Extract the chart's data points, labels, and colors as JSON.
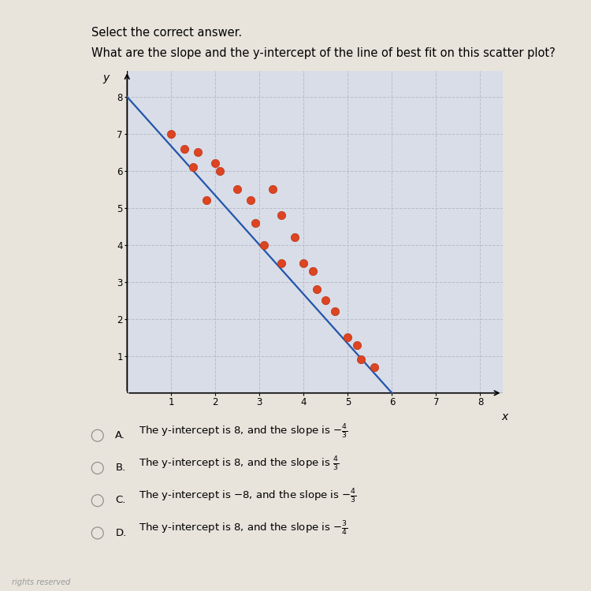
{
  "title_main": "Select the correct answer.",
  "title_question": "What are the slope and the y-intercept of the line of best fit on this scatter plot?",
  "scatter_points": [
    [
      1.0,
      7.0
    ],
    [
      1.3,
      6.6
    ],
    [
      1.6,
      6.5
    ],
    [
      1.5,
      6.1
    ],
    [
      2.0,
      6.2
    ],
    [
      2.1,
      6.0
    ],
    [
      1.8,
      5.2
    ],
    [
      2.5,
      5.5
    ],
    [
      2.8,
      5.2
    ],
    [
      2.9,
      4.6
    ],
    [
      3.1,
      4.0
    ],
    [
      3.3,
      5.5
    ],
    [
      3.5,
      4.8
    ],
    [
      3.5,
      3.5
    ],
    [
      3.8,
      4.2
    ],
    [
      4.0,
      3.5
    ],
    [
      4.2,
      3.3
    ],
    [
      4.3,
      2.8
    ],
    [
      4.5,
      2.5
    ],
    [
      4.7,
      2.2
    ],
    [
      5.0,
      1.5
    ],
    [
      5.2,
      1.3
    ],
    [
      5.3,
      0.9
    ],
    [
      5.6,
      0.7
    ]
  ],
  "line_x": [
    0.0,
    6.0
  ],
  "line_y": [
    8.0,
    0.0
  ],
  "line_color": "#2255aa",
  "scatter_color": "#dd4422",
  "scatter_edgecolor": "#bb3311",
  "scatter_size": 55,
  "xlim": [
    0,
    8.5
  ],
  "ylim": [
    0,
    8.7
  ],
  "xticks": [
    1,
    2,
    3,
    4,
    5,
    6,
    7,
    8
  ],
  "yticks": [
    1,
    2,
    3,
    4,
    5,
    6,
    7,
    8
  ],
  "xlabel": "x",
  "ylabel": "y",
  "grid_color": "#bbbbcc",
  "grid_style": "--",
  "bg_color": "#d8dde8",
  "page_bg": "#e8e4dc",
  "answers": [
    {
      "label": "A.",
      "text": "The y-intercept is 8, and the slope is ",
      "frac": "-4/3",
      "selected": false
    },
    {
      "label": "B.",
      "text": "The y-intercept is 8, and the slope is ",
      "frac": "4/3",
      "selected": false
    },
    {
      "label": "C.",
      "text": "The y-intercept is −8, and the slope is ",
      "frac": "-4/3",
      "selected": false
    },
    {
      "label": "D.",
      "text": "The y-intercept is 8, and the slope is ",
      "frac": "-3/4",
      "selected": false
    }
  ]
}
